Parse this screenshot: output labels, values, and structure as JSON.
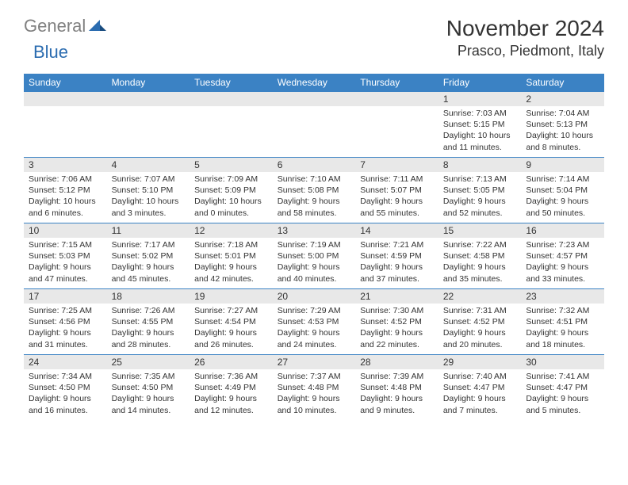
{
  "logo": {
    "part1": "General",
    "part2": "Blue"
  },
  "title": "November 2024",
  "location": "Prasco, Piedmont, Italy",
  "dayNames": [
    "Sunday",
    "Monday",
    "Tuesday",
    "Wednesday",
    "Thursday",
    "Friday",
    "Saturday"
  ],
  "colors": {
    "header_bg": "#3b82c4",
    "header_text": "#ffffff",
    "daynum_bg": "#e8e8e8",
    "row_border": "#3b82c4",
    "logo_gray": "#808080",
    "logo_blue": "#2b6cb0"
  },
  "weeks": [
    [
      {
        "n": "",
        "sunrise": "",
        "sunset": "",
        "daylight": ""
      },
      {
        "n": "",
        "sunrise": "",
        "sunset": "",
        "daylight": ""
      },
      {
        "n": "",
        "sunrise": "",
        "sunset": "",
        "daylight": ""
      },
      {
        "n": "",
        "sunrise": "",
        "sunset": "",
        "daylight": ""
      },
      {
        "n": "",
        "sunrise": "",
        "sunset": "",
        "daylight": ""
      },
      {
        "n": "1",
        "sunrise": "Sunrise: 7:03 AM",
        "sunset": "Sunset: 5:15 PM",
        "daylight": "Daylight: 10 hours and 11 minutes."
      },
      {
        "n": "2",
        "sunrise": "Sunrise: 7:04 AM",
        "sunset": "Sunset: 5:13 PM",
        "daylight": "Daylight: 10 hours and 8 minutes."
      }
    ],
    [
      {
        "n": "3",
        "sunrise": "Sunrise: 7:06 AM",
        "sunset": "Sunset: 5:12 PM",
        "daylight": "Daylight: 10 hours and 6 minutes."
      },
      {
        "n": "4",
        "sunrise": "Sunrise: 7:07 AM",
        "sunset": "Sunset: 5:10 PM",
        "daylight": "Daylight: 10 hours and 3 minutes."
      },
      {
        "n": "5",
        "sunrise": "Sunrise: 7:09 AM",
        "sunset": "Sunset: 5:09 PM",
        "daylight": "Daylight: 10 hours and 0 minutes."
      },
      {
        "n": "6",
        "sunrise": "Sunrise: 7:10 AM",
        "sunset": "Sunset: 5:08 PM",
        "daylight": "Daylight: 9 hours and 58 minutes."
      },
      {
        "n": "7",
        "sunrise": "Sunrise: 7:11 AM",
        "sunset": "Sunset: 5:07 PM",
        "daylight": "Daylight: 9 hours and 55 minutes."
      },
      {
        "n": "8",
        "sunrise": "Sunrise: 7:13 AM",
        "sunset": "Sunset: 5:05 PM",
        "daylight": "Daylight: 9 hours and 52 minutes."
      },
      {
        "n": "9",
        "sunrise": "Sunrise: 7:14 AM",
        "sunset": "Sunset: 5:04 PM",
        "daylight": "Daylight: 9 hours and 50 minutes."
      }
    ],
    [
      {
        "n": "10",
        "sunrise": "Sunrise: 7:15 AM",
        "sunset": "Sunset: 5:03 PM",
        "daylight": "Daylight: 9 hours and 47 minutes."
      },
      {
        "n": "11",
        "sunrise": "Sunrise: 7:17 AM",
        "sunset": "Sunset: 5:02 PM",
        "daylight": "Daylight: 9 hours and 45 minutes."
      },
      {
        "n": "12",
        "sunrise": "Sunrise: 7:18 AM",
        "sunset": "Sunset: 5:01 PM",
        "daylight": "Daylight: 9 hours and 42 minutes."
      },
      {
        "n": "13",
        "sunrise": "Sunrise: 7:19 AM",
        "sunset": "Sunset: 5:00 PM",
        "daylight": "Daylight: 9 hours and 40 minutes."
      },
      {
        "n": "14",
        "sunrise": "Sunrise: 7:21 AM",
        "sunset": "Sunset: 4:59 PM",
        "daylight": "Daylight: 9 hours and 37 minutes."
      },
      {
        "n": "15",
        "sunrise": "Sunrise: 7:22 AM",
        "sunset": "Sunset: 4:58 PM",
        "daylight": "Daylight: 9 hours and 35 minutes."
      },
      {
        "n": "16",
        "sunrise": "Sunrise: 7:23 AM",
        "sunset": "Sunset: 4:57 PM",
        "daylight": "Daylight: 9 hours and 33 minutes."
      }
    ],
    [
      {
        "n": "17",
        "sunrise": "Sunrise: 7:25 AM",
        "sunset": "Sunset: 4:56 PM",
        "daylight": "Daylight: 9 hours and 31 minutes."
      },
      {
        "n": "18",
        "sunrise": "Sunrise: 7:26 AM",
        "sunset": "Sunset: 4:55 PM",
        "daylight": "Daylight: 9 hours and 28 minutes."
      },
      {
        "n": "19",
        "sunrise": "Sunrise: 7:27 AM",
        "sunset": "Sunset: 4:54 PM",
        "daylight": "Daylight: 9 hours and 26 minutes."
      },
      {
        "n": "20",
        "sunrise": "Sunrise: 7:29 AM",
        "sunset": "Sunset: 4:53 PM",
        "daylight": "Daylight: 9 hours and 24 minutes."
      },
      {
        "n": "21",
        "sunrise": "Sunrise: 7:30 AM",
        "sunset": "Sunset: 4:52 PM",
        "daylight": "Daylight: 9 hours and 22 minutes."
      },
      {
        "n": "22",
        "sunrise": "Sunrise: 7:31 AM",
        "sunset": "Sunset: 4:52 PM",
        "daylight": "Daylight: 9 hours and 20 minutes."
      },
      {
        "n": "23",
        "sunrise": "Sunrise: 7:32 AM",
        "sunset": "Sunset: 4:51 PM",
        "daylight": "Daylight: 9 hours and 18 minutes."
      }
    ],
    [
      {
        "n": "24",
        "sunrise": "Sunrise: 7:34 AM",
        "sunset": "Sunset: 4:50 PM",
        "daylight": "Daylight: 9 hours and 16 minutes."
      },
      {
        "n": "25",
        "sunrise": "Sunrise: 7:35 AM",
        "sunset": "Sunset: 4:50 PM",
        "daylight": "Daylight: 9 hours and 14 minutes."
      },
      {
        "n": "26",
        "sunrise": "Sunrise: 7:36 AM",
        "sunset": "Sunset: 4:49 PM",
        "daylight": "Daylight: 9 hours and 12 minutes."
      },
      {
        "n": "27",
        "sunrise": "Sunrise: 7:37 AM",
        "sunset": "Sunset: 4:48 PM",
        "daylight": "Daylight: 9 hours and 10 minutes."
      },
      {
        "n": "28",
        "sunrise": "Sunrise: 7:39 AM",
        "sunset": "Sunset: 4:48 PM",
        "daylight": "Daylight: 9 hours and 9 minutes."
      },
      {
        "n": "29",
        "sunrise": "Sunrise: 7:40 AM",
        "sunset": "Sunset: 4:47 PM",
        "daylight": "Daylight: 9 hours and 7 minutes."
      },
      {
        "n": "30",
        "sunrise": "Sunrise: 7:41 AM",
        "sunset": "Sunset: 4:47 PM",
        "daylight": "Daylight: 9 hours and 5 minutes."
      }
    ]
  ]
}
